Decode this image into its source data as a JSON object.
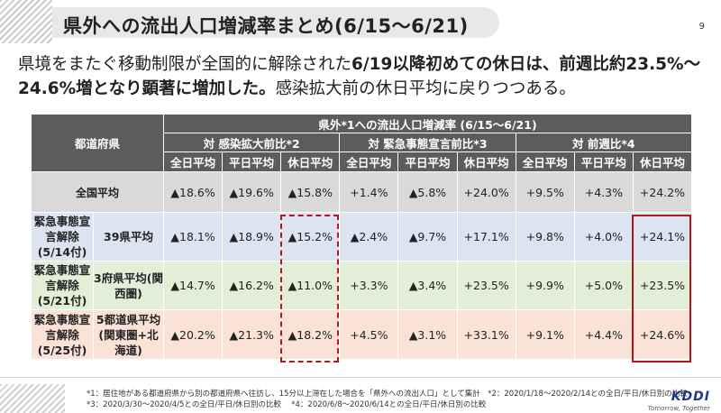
{
  "title": "県外への流出人口増減率まとめ(6/15〜6/21)",
  "page_number": "9",
  "lead": {
    "part1": "県境をまたぐ移動制限が全国的に解除された",
    "part2_bold": "6/19以降初めての休日は、前週比約23.5%〜24.6%増となり顕著に増加した。",
    "part3": "感染拡大前の休日平均に戻りつつある。"
  },
  "table": {
    "pref_header": "都道府県",
    "main_header": "県外*1への流出人口増減率 (6/15〜6/21)",
    "groups": [
      "対 感染拡大前比*2",
      "対 緊急事態宣言前比*3",
      "対 前週比*4"
    ],
    "cols": [
      "全日平均",
      "平日平均",
      "休日平均",
      "全日平均",
      "平日平均",
      "休日平均",
      "全日平均",
      "平日平均",
      "休日平均"
    ],
    "rows": [
      {
        "group": "",
        "label": "全国平均",
        "values": [
          "▲18.6%",
          "▲19.6%",
          "▲15.8%",
          "+1.4%",
          "▲5.8%",
          "+24.0%",
          "+9.5%",
          "+4.3%",
          "+24.2%"
        ]
      },
      {
        "group": "緊急事態宣言解除(5/14付)",
        "label": "39県平均",
        "values": [
          "▲18.1%",
          "▲18.9%",
          "▲15.2%",
          "▲2.4%",
          "▲9.7%",
          "+17.1%",
          "+9.8%",
          "+4.0%",
          "+24.1%"
        ]
      },
      {
        "group": "緊急事態宣言解除(5/21付)",
        "label": "3府県平均(関西圏)",
        "values": [
          "▲14.7%",
          "▲16.2%",
          "▲11.0%",
          "+3.3%",
          "▲3.4%",
          "+23.5%",
          "+9.9%",
          "+5.0%",
          "+23.5%"
        ]
      },
      {
        "group": "緊急事態宣言解除(5/25付)",
        "label": "5都道県平均(関東圏+北海道)",
        "values": [
          "▲20.2%",
          "▲21.3%",
          "▲18.2%",
          "+4.5%",
          "▲3.1%",
          "+33.1%",
          "+9.1%",
          "+4.4%",
          "+24.6%"
        ]
      }
    ]
  },
  "notes": {
    "line1": "*1：居住地がある都道府県から別の都道府県へ往訪し、15分以上滞在した場合を「県外への流出人口」として集計　*2：2020/1/18〜2020/2/14との全日/平日/休日別の比較",
    "line2": "*3：2020/3/30〜2020/4/5との全日/平日/休日別の比較　 *4：2020/6/8〜2020/6/14との全日/平日/休日別の比較"
  },
  "logo": {
    "mark": "KDDI",
    "tagline": "Tomorrow, Together"
  }
}
